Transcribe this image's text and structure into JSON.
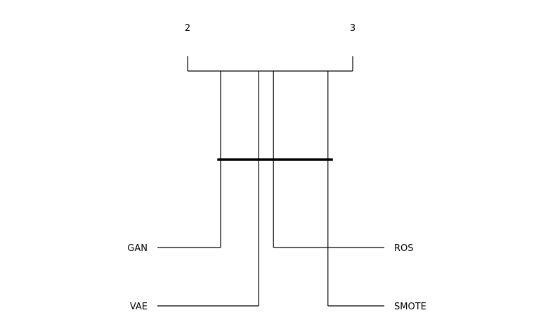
{
  "chart_data": {
    "type": "critical-difference-diagram",
    "axis": {
      "min": 2,
      "max": 3,
      "ticks": [
        2,
        3
      ],
      "tick_labels": [
        "2",
        "3"
      ],
      "direction": "ascending-left-to-right"
    },
    "methods": [
      {
        "name": "GAN",
        "rank": 2.2,
        "side": "left"
      },
      {
        "name": "VAE",
        "rank": 2.43,
        "side": "left"
      },
      {
        "name": "ROS",
        "rank": 2.52,
        "side": "right"
      },
      {
        "name": "SMOTE",
        "rank": 2.85,
        "side": "right"
      }
    ],
    "cliques": [
      {
        "from_rank": 2.18,
        "to_rank": 2.88
      }
    ],
    "colors": {
      "lines": "#000000",
      "background": "#ffffff"
    }
  }
}
